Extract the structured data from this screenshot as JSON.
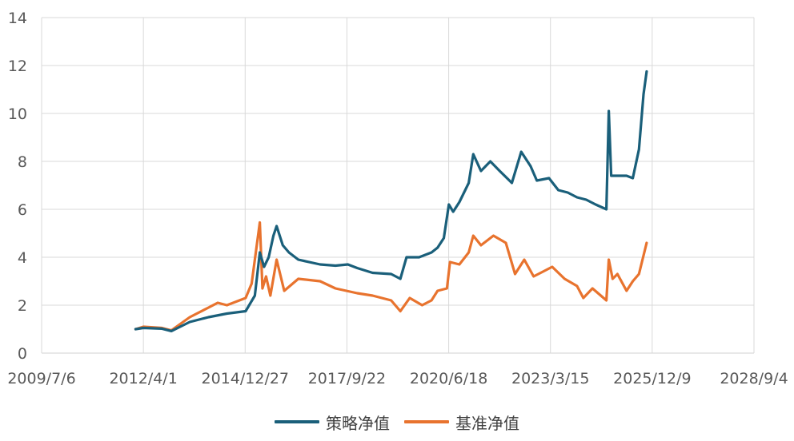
{
  "chart_data": {
    "type": "line",
    "title": "",
    "xlabel": "",
    "ylabel": "",
    "x_ticks": [
      "2009/7/6",
      "2012/4/1",
      "2014/12/27",
      "2017/9/22",
      "2020/6/18",
      "2023/3/15",
      "2025/12/9",
      "2028/9/4"
    ],
    "xlim": [
      "2009-07-06",
      "2028-09-04"
    ],
    "ylim": [
      0,
      14
    ],
    "y_ticks": [
      0,
      2,
      4,
      6,
      8,
      10,
      12,
      14
    ],
    "grid": true,
    "legend_position": "bottom",
    "series": [
      {
        "name": "策略净值",
        "color": "#1a5f7a",
        "points": [
          [
            "2012-01-15",
            1.0
          ],
          [
            "2012-04-01",
            1.05
          ],
          [
            "2012-10-01",
            1.02
          ],
          [
            "2013-01-01",
            0.92
          ],
          [
            "2013-07-01",
            1.3
          ],
          [
            "2014-01-01",
            1.5
          ],
          [
            "2014-07-01",
            1.65
          ],
          [
            "2015-01-01",
            1.75
          ],
          [
            "2015-04-01",
            2.4
          ],
          [
            "2015-05-20",
            4.2
          ],
          [
            "2015-07-01",
            3.6
          ],
          [
            "2015-08-15",
            4.0
          ],
          [
            "2015-10-01",
            4.9
          ],
          [
            "2015-11-01",
            5.3
          ],
          [
            "2016-01-01",
            4.5
          ],
          [
            "2016-03-01",
            4.2
          ],
          [
            "2016-06-01",
            3.9
          ],
          [
            "2017-01-01",
            3.7
          ],
          [
            "2017-06-01",
            3.65
          ],
          [
            "2017-10-01",
            3.7
          ],
          [
            "2018-01-01",
            3.55
          ],
          [
            "2018-06-01",
            3.35
          ],
          [
            "2018-12-01",
            3.3
          ],
          [
            "2019-03-01",
            3.1
          ],
          [
            "2019-05-01",
            4.0
          ],
          [
            "2019-09-01",
            4.0
          ],
          [
            "2020-01-01",
            4.2
          ],
          [
            "2020-03-01",
            4.4
          ],
          [
            "2020-05-01",
            4.8
          ],
          [
            "2020-06-20",
            6.2
          ],
          [
            "2020-08-01",
            5.9
          ],
          [
            "2020-10-01",
            6.3
          ],
          [
            "2021-01-01",
            7.1
          ],
          [
            "2021-02-15",
            8.3
          ],
          [
            "2021-05-01",
            7.6
          ],
          [
            "2021-08-01",
            8.0
          ],
          [
            "2021-11-01",
            7.6
          ],
          [
            "2022-03-01",
            7.1
          ],
          [
            "2022-06-01",
            8.4
          ],
          [
            "2022-09-01",
            7.8
          ],
          [
            "2022-11-01",
            7.2
          ],
          [
            "2023-03-01",
            7.3
          ],
          [
            "2023-06-01",
            6.8
          ],
          [
            "2023-09-01",
            6.7
          ],
          [
            "2023-12-01",
            6.5
          ],
          [
            "2024-03-01",
            6.4
          ],
          [
            "2024-06-01",
            6.2
          ],
          [
            "2024-09-15",
            6.0
          ],
          [
            "2024-10-08",
            10.1
          ],
          [
            "2024-11-01",
            7.4
          ],
          [
            "2025-01-01",
            7.4
          ],
          [
            "2025-04-01",
            7.4
          ],
          [
            "2025-06-01",
            7.3
          ],
          [
            "2025-08-01",
            8.5
          ],
          [
            "2025-09-15",
            10.8
          ],
          [
            "2025-10-15",
            11.75
          ]
        ]
      },
      {
        "name": "基准净值",
        "color": "#e8732e",
        "points": [
          [
            "2012-01-15",
            1.0
          ],
          [
            "2012-04-01",
            1.1
          ],
          [
            "2012-10-01",
            1.05
          ],
          [
            "2013-01-01",
            0.95
          ],
          [
            "2013-07-01",
            1.5
          ],
          [
            "2014-01-01",
            1.9
          ],
          [
            "2014-04-01",
            2.1
          ],
          [
            "2014-07-01",
            2.0
          ],
          [
            "2015-01-01",
            2.3
          ],
          [
            "2015-03-01",
            2.9
          ],
          [
            "2015-05-20",
            5.45
          ],
          [
            "2015-06-15",
            2.7
          ],
          [
            "2015-07-20",
            3.2
          ],
          [
            "2015-09-01",
            2.4
          ],
          [
            "2015-11-01",
            3.9
          ],
          [
            "2016-01-15",
            2.6
          ],
          [
            "2016-06-01",
            3.1
          ],
          [
            "2017-01-01",
            3.0
          ],
          [
            "2017-06-01",
            2.7
          ],
          [
            "2018-01-01",
            2.5
          ],
          [
            "2018-06-01",
            2.4
          ],
          [
            "2018-12-01",
            2.2
          ],
          [
            "2019-03-01",
            1.75
          ],
          [
            "2019-06-01",
            2.3
          ],
          [
            "2019-10-01",
            2.0
          ],
          [
            "2020-01-01",
            2.2
          ],
          [
            "2020-03-01",
            2.6
          ],
          [
            "2020-06-01",
            2.7
          ],
          [
            "2020-07-01",
            3.8
          ],
          [
            "2020-10-01",
            3.7
          ],
          [
            "2021-01-01",
            4.2
          ],
          [
            "2021-02-15",
            4.9
          ],
          [
            "2021-05-01",
            4.5
          ],
          [
            "2021-09-01",
            4.9
          ],
          [
            "2022-01-01",
            4.6
          ],
          [
            "2022-04-01",
            3.3
          ],
          [
            "2022-07-01",
            3.9
          ],
          [
            "2022-10-01",
            3.2
          ],
          [
            "2023-01-01",
            3.4
          ],
          [
            "2023-04-01",
            3.6
          ],
          [
            "2023-08-01",
            3.1
          ],
          [
            "2023-12-01",
            2.8
          ],
          [
            "2024-02-01",
            2.3
          ],
          [
            "2024-05-01",
            2.7
          ],
          [
            "2024-09-15",
            2.2
          ],
          [
            "2024-10-08",
            3.9
          ],
          [
            "2024-11-15",
            3.1
          ],
          [
            "2025-01-01",
            3.3
          ],
          [
            "2025-04-01",
            2.6
          ],
          [
            "2025-06-01",
            3.0
          ],
          [
            "2025-08-01",
            3.3
          ],
          [
            "2025-10-15",
            4.6
          ]
        ]
      }
    ]
  }
}
